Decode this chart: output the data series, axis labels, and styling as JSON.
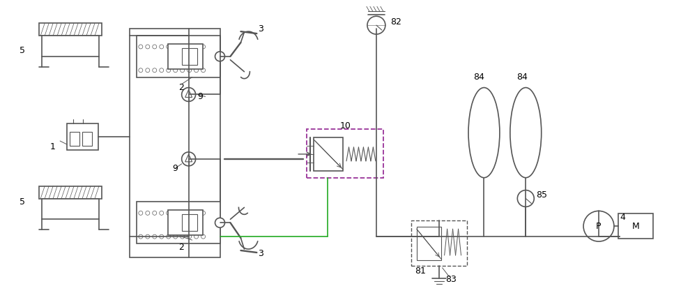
{
  "fig_width": 10.0,
  "fig_height": 4.2,
  "dpi": 100,
  "lc": "#555555",
  "bg": "#ffffff",
  "purple": "#993399",
  "green": "#22aa22"
}
